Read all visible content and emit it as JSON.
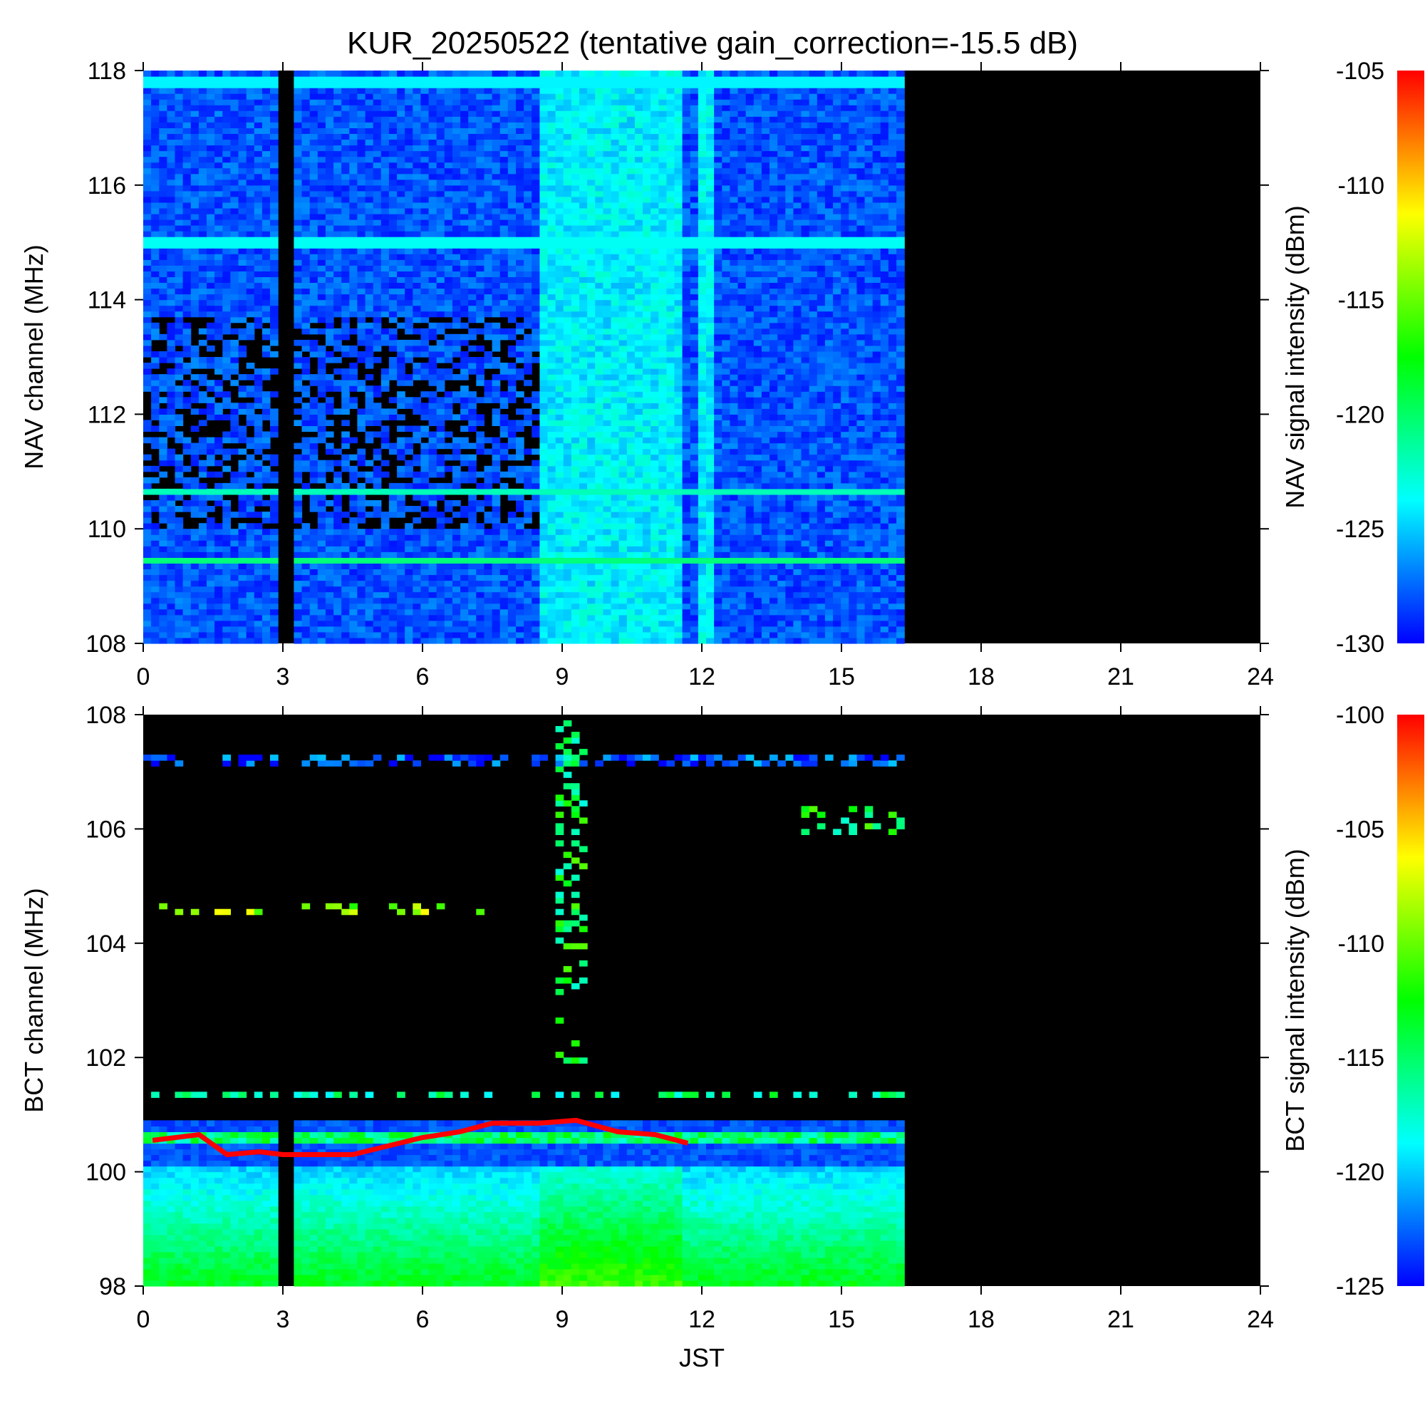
{
  "title": "KUR_20250522 (tentative gain_correction=-15.5 dB)",
  "chart_data": [
    {
      "type": "heatmap",
      "panel": "nav",
      "xlabel": "",
      "ylabel": "NAV channel (MHz)",
      "colorbar_label": "NAV signal intensity (dBm)",
      "xlim": [
        0,
        24
      ],
      "ylim": [
        108,
        118
      ],
      "x_ticks": [
        0,
        3,
        6,
        9,
        12,
        15,
        18,
        21,
        24
      ],
      "y_ticks": [
        108,
        110,
        112,
        114,
        116,
        118
      ],
      "colorbar_range": [
        -130,
        -105
      ],
      "colorbar_ticks": [
        -130,
        -125,
        -120,
        -115,
        -110,
        -105
      ],
      "colormap": [
        "#0000ff",
        "#00ffff",
        "#00ff00",
        "#ffff00",
        "#ff0000"
      ],
      "no_data_color": "#000000",
      "data_end_hour": 16.35,
      "gap_hours": [
        3.05,
        3.15
      ],
      "background_dBm": -128,
      "features": [
        {
          "kind": "band",
          "freq": 117.8,
          "dBm": -124
        },
        {
          "kind": "band",
          "freq": 115.0,
          "dBm": -123.5
        },
        {
          "kind": "band",
          "freq": 110.65,
          "dBm": -122
        },
        {
          "kind": "band",
          "freq": 109.45,
          "dBm": -120.5
        },
        {
          "kind": "day_enhancement",
          "start": 8.5,
          "end": 11.6,
          "dBm": -124
        },
        {
          "kind": "day_enhancement",
          "start": 12.0,
          "end": 12.2,
          "dBm": -124
        },
        {
          "kind": "night_dropout",
          "start": 0,
          "end": 8.5,
          "freq_range": [
            110,
            113.7
          ]
        }
      ]
    },
    {
      "type": "heatmap",
      "panel": "bct",
      "xlabel": "JST",
      "ylabel": "BCT channel (MHz)",
      "colorbar_label": "BCT signal intensity (dBm)",
      "xlim": [
        0,
        24
      ],
      "ylim": [
        98,
        108
      ],
      "x_ticks": [
        0,
        3,
        6,
        9,
        12,
        15,
        18,
        21,
        24
      ],
      "y_ticks": [
        98,
        100,
        102,
        104,
        106,
        108
      ],
      "colorbar_range": [
        -125,
        -100
      ],
      "colorbar_ticks": [
        -125,
        -120,
        -115,
        -110,
        -105,
        -100
      ],
      "colormap": [
        "#0000ff",
        "#00ffff",
        "#00ff00",
        "#ffff00",
        "#ff0000"
      ],
      "no_data_color": "#000000",
      "data_end_hour": 16.35,
      "gap_hours": [
        3.05,
        3.15
      ],
      "features": [
        {
          "kind": "band",
          "freq": 100.6,
          "dBm": -115
        },
        {
          "kind": "band",
          "freq": 101.35,
          "dBm": -116
        },
        {
          "kind": "band",
          "freq": 107.2,
          "dBm": -123
        },
        {
          "kind": "low_gradient",
          "freq_range": [
            98,
            100.1
          ],
          "dBm_bottom": -113,
          "dBm_top": -120
        },
        {
          "kind": "strong_trace",
          "points": [
            [
              0.2,
              100.55
            ],
            [
              1.2,
              100.65
            ],
            [
              1.8,
              100.3
            ],
            [
              2.5,
              100.35
            ],
            [
              3.0,
              100.3
            ],
            [
              4.5,
              100.3
            ],
            [
              5.5,
              100.5
            ],
            [
              6.0,
              100.6
            ],
            [
              6.8,
              100.7
            ],
            [
              7.5,
              100.85
            ],
            [
              8.5,
              100.85
            ],
            [
              9.3,
              100.9
            ],
            [
              10.2,
              100.7
            ],
            [
              11.0,
              100.65
            ],
            [
              11.7,
              100.5
            ]
          ],
          "dBm": -100
        },
        {
          "kind": "scatter_region",
          "hours": [
            8.9,
            9.5
          ],
          "freq_range": [
            101.9,
            108
          ]
        },
        {
          "kind": "scatter_region",
          "hours": [
            14.2,
            16.35
          ],
          "freq_range": [
            105.9,
            106.4
          ]
        },
        {
          "kind": "intermittent",
          "freq": 104.6,
          "hours": [
            0,
            7.3
          ]
        }
      ]
    }
  ]
}
